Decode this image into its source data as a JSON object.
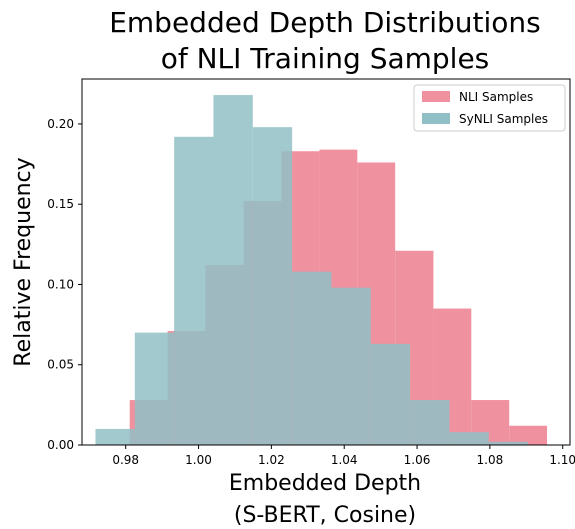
{
  "chart_data": {
    "type": "bar",
    "title_lines": [
      "Embedded Depth Distributions",
      "of NLI Training Samples"
    ],
    "xlabel_lines": [
      "Embedded Depth",
      "(S-BERT, Cosine)"
    ],
    "ylabel": "Relative Frequency",
    "xlim": [
      0.968,
      1.102
    ],
    "ylim": [
      0.0,
      0.228
    ],
    "xticks": [
      "0.98",
      "1.00",
      "1.02",
      "1.04",
      "1.06",
      "1.08",
      "1.10"
    ],
    "yticks": [
      "0.00",
      "0.05",
      "0.10",
      "0.15",
      "0.20"
    ],
    "legend_position": "top-right",
    "colors": {
      "nli": "#f0919f",
      "synli": "#91bfc6",
      "overlap": "#98a8b0"
    },
    "series": [
      {
        "name": "NLI Samples",
        "color": "#f0919f",
        "bin_edges": [
          0.9811,
          0.9915,
          1.0019,
          1.0124,
          1.0228,
          1.0332,
          1.0436,
          1.054,
          1.0645,
          1.0749,
          1.0853,
          1.0957
        ],
        "values": [
          0.028,
          0.071,
          0.112,
          0.152,
          0.183,
          0.184,
          0.176,
          0.121,
          0.085,
          0.028,
          0.012
        ]
      },
      {
        "name": "SyNLI Samples",
        "color": "#91bfc6",
        "bin_edges": [
          0.9717,
          0.9825,
          0.9933,
          1.0041,
          1.0149,
          1.0257,
          1.0365,
          1.0473,
          1.0581,
          1.0689,
          1.0797,
          1.0905
        ],
        "values": [
          0.01,
          0.07,
          0.192,
          0.218,
          0.198,
          0.108,
          0.098,
          0.063,
          0.028,
          0.008,
          0.002
        ]
      }
    ]
  }
}
